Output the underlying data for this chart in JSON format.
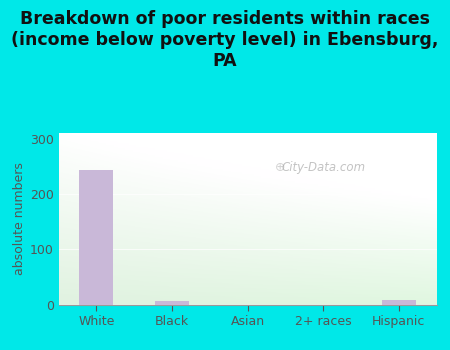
{
  "categories": [
    "White",
    "Black",
    "Asian",
    "2+ races",
    "Hispanic"
  ],
  "values": [
    243,
    7,
    0,
    0,
    9
  ],
  "bar_color": "#c9b8d8",
  "title": "Breakdown of poor residents within races\n(income below poverty level) in Ebensburg,\nPA",
  "ylabel": "absolute numbers",
  "ylim": [
    0,
    310
  ],
  "yticks": [
    0,
    100,
    200,
    300
  ],
  "background_color": "#00e8e8",
  "title_fontsize": 12.5,
  "axis_label_fontsize": 9,
  "tick_fontsize": 9,
  "watermark_text": "City-Data.com",
  "grid_color": "#ccddcc",
  "plot_bg_topleft": "#e8f5e8",
  "plot_bg_topright": "#f5faf5",
  "plot_bg_bottomleft": "#c8e8d0",
  "plot_bg_bottomright": "#f0f8f0"
}
